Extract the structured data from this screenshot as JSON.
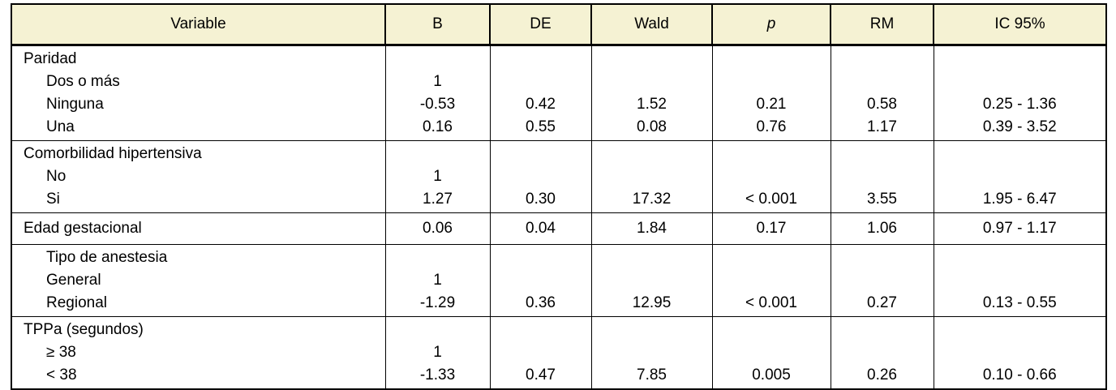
{
  "table": {
    "header_bg": "#f5f2d3",
    "border_color": "#000000",
    "columns": [
      "Variable",
      "B",
      "DE",
      "Wald",
      "p",
      "RM",
      "IC 95%"
    ],
    "sections": [
      {
        "rows": [
          {
            "indent": false,
            "cells": [
              "Paridad",
              "",
              "",
              "",
              "",
              "",
              ""
            ]
          },
          {
            "indent": true,
            "cells": [
              "Dos o más",
              "1",
              "",
              "",
              "",
              "",
              ""
            ]
          },
          {
            "indent": true,
            "cells": [
              "Ninguna",
              "-0.53",
              "0.42",
              "1.52",
              "0.21",
              "0.58",
              "0.25 - 1.36"
            ]
          },
          {
            "indent": true,
            "cells": [
              "Una",
              "0.16",
              "0.55",
              "0.08",
              "0.76",
              "1.17",
              "0.39 - 3.52"
            ]
          }
        ]
      },
      {
        "rows": [
          {
            "indent": false,
            "cells": [
              "Comorbilidad hipertensiva",
              "",
              "",
              "",
              "",
              "",
              ""
            ]
          },
          {
            "indent": true,
            "cells": [
              "No",
              "1",
              "",
              "",
              "",
              "",
              ""
            ]
          },
          {
            "indent": true,
            "cells": [
              "Si",
              "1.27",
              "0.30",
              "17.32",
              "< 0.001",
              "3.55",
              "1.95 - 6.47"
            ]
          }
        ]
      },
      {
        "rows": [
          {
            "indent": false,
            "cells": [
              "Edad gestacional",
              "0.06",
              "0.04",
              "1.84",
              "0.17",
              "1.06",
              "0.97 - 1.17"
            ]
          }
        ]
      },
      {
        "rows": [
          {
            "indent": true,
            "cells": [
              "Tipo de anestesia",
              "",
              "",
              "",
              "",
              "",
              ""
            ]
          },
          {
            "indent": true,
            "cells": [
              "General",
              "1",
              "",
              "",
              "",
              "",
              ""
            ]
          },
          {
            "indent": true,
            "cells": [
              "Regional",
              "-1.29",
              "0.36",
              "12.95",
              "< 0.001",
              "0.27",
              "0.13 - 0.55"
            ]
          }
        ]
      },
      {
        "rows": [
          {
            "indent": false,
            "cells": [
              "TPPa (segundos)",
              "",
              "",
              "",
              "",
              "",
              ""
            ]
          },
          {
            "indent": true,
            "cells": [
              "≥ 38",
              "1",
              "",
              "",
              "",
              "",
              ""
            ]
          },
          {
            "indent": true,
            "cells": [
              "< 38",
              "-1.33",
              "0.47",
              "7.85",
              "0.005",
              "0.26",
              "0.10 - 0.66"
            ]
          }
        ]
      }
    ]
  }
}
